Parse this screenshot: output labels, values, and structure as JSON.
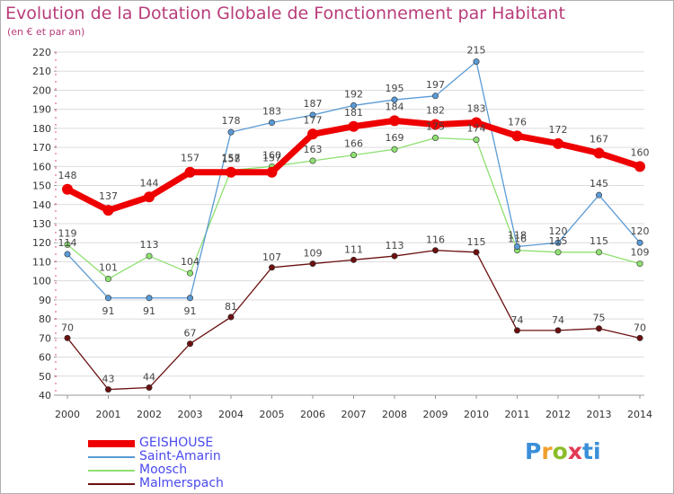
{
  "chart_data": {
    "type": "line",
    "title": "Evolution de la Dotation Globale de Fonctionnement par Habitant",
    "subtitle": "(en € et par an)",
    "x": [
      "2000",
      "2001",
      "2002",
      "2003",
      "2004",
      "2005",
      "2006",
      "2007",
      "2008",
      "2009",
      "2010",
      "2011",
      "2012",
      "2013",
      "2014"
    ],
    "ylim": [
      40,
      220
    ],
    "yticks": [
      40,
      50,
      60,
      70,
      80,
      90,
      100,
      110,
      120,
      130,
      140,
      150,
      160,
      170,
      180,
      190,
      200,
      210,
      220
    ],
    "series": [
      {
        "name": "Malmerspach",
        "color": "#6b1010",
        "values": [
          70,
          43,
          44,
          67,
          81,
          107,
          109,
          111,
          113,
          116,
          115,
          74,
          74,
          75,
          70
        ]
      },
      {
        "name": "Moosch",
        "color": "#8ee070",
        "values": [
          119,
          101,
          113,
          104,
          158,
          160,
          163,
          166,
          169,
          175,
          174,
          116,
          115,
          115,
          109
        ]
      },
      {
        "name": "Saint-Amarin",
        "color": "#5a9ad6",
        "values": [
          114,
          91,
          91,
          91,
          178,
          183,
          187,
          192,
          195,
          197,
          215,
          118,
          120,
          145,
          120
        ]
      },
      {
        "name": "GEISHOUSE",
        "color": "#ee0000",
        "values": [
          148,
          137,
          144,
          157,
          157,
          157,
          177,
          181,
          184,
          182,
          183,
          176,
          172,
          167,
          160
        ]
      }
    ],
    "labels": [
      {
        "series": "Malmerspach",
        "values": [
          "70",
          "43",
          "44",
          "67",
          "81",
          "107",
          "109",
          "111",
          "113",
          "116",
          "115",
          "74",
          "74",
          "75",
          "70"
        ]
      },
      {
        "series": "Moosch",
        "values": [
          "119",
          "101",
          "113",
          "104",
          "158",
          "160",
          "163",
          "166",
          "169",
          "175",
          "174",
          "116",
          "115",
          "115",
          "109"
        ]
      },
      {
        "series": "Saint-Amarin",
        "values": [
          "114",
          "91",
          "91",
          "91",
          "178",
          "183",
          "187",
          "192",
          "195",
          "197",
          "215",
          "118",
          "120",
          "145",
          "120"
        ]
      },
      {
        "series": "GEISHOUSE",
        "values": [
          "148",
          "137",
          "144",
          "157",
          "157",
          "157",
          "177",
          "181",
          "184",
          "182",
          "183",
          "176",
          "172",
          "167",
          "160"
        ]
      }
    ]
  },
  "legend": [
    {
      "name": "GEISHOUSE",
      "color": "#ee0000"
    },
    {
      "name": "Saint-Amarin",
      "color": "#5a9ad6"
    },
    {
      "name": "Moosch",
      "color": "#8ee070"
    },
    {
      "name": "Malmerspach",
      "color": "#6b1010"
    }
  ],
  "logo": {
    "p": "P",
    "r": "r",
    "o": "o",
    "x": "x",
    "i": "i",
    "t": "ti"
  }
}
